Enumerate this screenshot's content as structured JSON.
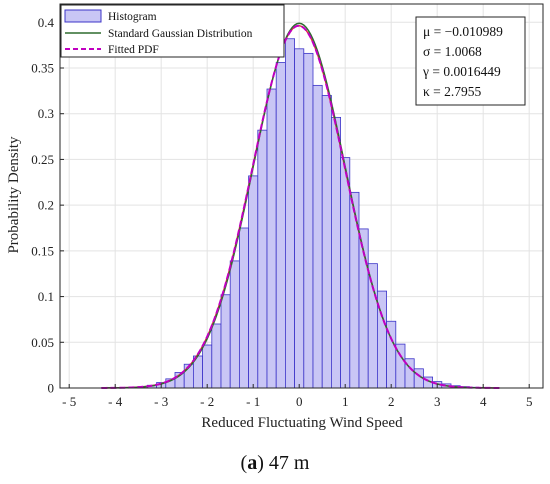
{
  "chart_data": {
    "type": "bar",
    "xlabel": "Reduced Fluctuating Wind Speed",
    "ylabel": "Probability Density",
    "xlim": [
      -5.2,
      5.3
    ],
    "ylim": [
      0,
      0.42
    ],
    "xticks": [
      "-5",
      "-4",
      "-3",
      "-2",
      "-1",
      "0",
      "1",
      "2",
      "3",
      "4",
      "5"
    ],
    "yticks": [
      "0",
      "0.05",
      "0.1",
      "0.15",
      "0.2",
      "0.25",
      "0.3",
      "0.35",
      "0.4"
    ],
    "grid": true,
    "legend_position": "top-left",
    "legend": [
      "Histogram",
      "Standard Gaussian Distribution",
      "Fitted PDF"
    ],
    "colors": {
      "bar_fill": "#c9c6f5",
      "bar_edge": "#3c34c8",
      "gaussian": "#2f6b2f",
      "fitted": "#c000c0",
      "fitted_alt": "#e0204a"
    },
    "histogram": {
      "bin_width": 0.2,
      "bin_starts": [
        -4.3,
        -4.1,
        -3.9,
        -3.7,
        -3.5,
        -3.3,
        -3.1,
        -2.9,
        -2.7,
        -2.5,
        -2.3,
        -2.1,
        -1.9,
        -1.7,
        -1.5,
        -1.3,
        -1.1,
        -0.9,
        -0.7,
        -0.5,
        -0.3,
        -0.1,
        0.1,
        0.3,
        0.5,
        0.7,
        0.9,
        1.1,
        1.3,
        1.5,
        1.7,
        1.9,
        2.1,
        2.3,
        2.5,
        2.7,
        2.9,
        3.1,
        3.3,
        3.5,
        3.7,
        3.9,
        4.1
      ],
      "values": [
        0.0002,
        0.0003,
        0.0004,
        0.0008,
        0.0015,
        0.003,
        0.006,
        0.01,
        0.017,
        0.026,
        0.035,
        0.047,
        0.07,
        0.102,
        0.139,
        0.175,
        0.232,
        0.282,
        0.327,
        0.356,
        0.382,
        0.371,
        0.366,
        0.331,
        0.32,
        0.296,
        0.252,
        0.214,
        0.174,
        0.136,
        0.106,
        0.073,
        0.048,
        0.032,
        0.021,
        0.012,
        0.007,
        0.0045,
        0.0025,
        0.0015,
        0.0008,
        0.0004,
        0.0002
      ]
    },
    "series": [
      {
        "name": "Standard Gaussian Distribution",
        "mu": 0,
        "sigma": 1
      },
      {
        "name": "Fitted PDF",
        "mu": -0.010989,
        "sigma": 1.0068
      }
    ],
    "annotations": {
      "mu": "μ = −0.010989",
      "sigma": "σ = 1.0068",
      "gamma": "γ = 0.0016449",
      "kappa": "κ = 2.7955"
    }
  },
  "caption": {
    "bold": "a",
    "text": " 47 m"
  }
}
